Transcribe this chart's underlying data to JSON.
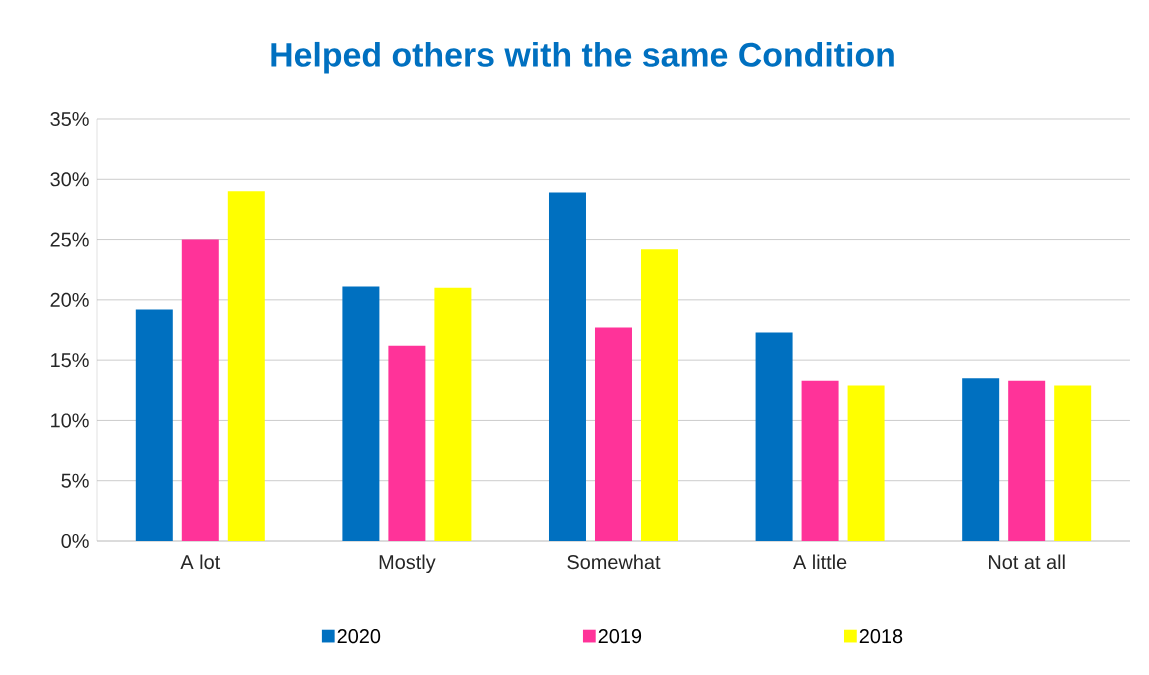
{
  "chart_data": {
    "type": "bar",
    "title": "Helped others with the same Condition",
    "categories": [
      "A lot",
      "Mostly",
      "Somewhat",
      "A little",
      "Not at all"
    ],
    "series": [
      {
        "name": "2020",
        "color": "#0070c0",
        "values": [
          19.2,
          21.1,
          28.9,
          17.3,
          13.5
        ]
      },
      {
        "name": "2019",
        "color": "#ff3399",
        "values": [
          25.0,
          16.2,
          17.7,
          13.3,
          13.3
        ]
      },
      {
        "name": "2018",
        "color": "#ffff00",
        "values": [
          29.0,
          21.0,
          24.2,
          12.9,
          12.9
        ]
      }
    ],
    "ylim": [
      0,
      35
    ],
    "yticks": [
      {
        "value": 0,
        "label": "0%"
      },
      {
        "value": 5,
        "label": "5%"
      },
      {
        "value": 10,
        "label": "10%"
      },
      {
        "value": 15,
        "label": "15%"
      },
      {
        "value": 20,
        "label": "20%"
      },
      {
        "value": 25,
        "label": "25%"
      },
      {
        "value": 30,
        "label": "30%"
      },
      {
        "value": 35,
        "label": "35%"
      }
    ],
    "grid": "y",
    "legend": "bottom"
  }
}
